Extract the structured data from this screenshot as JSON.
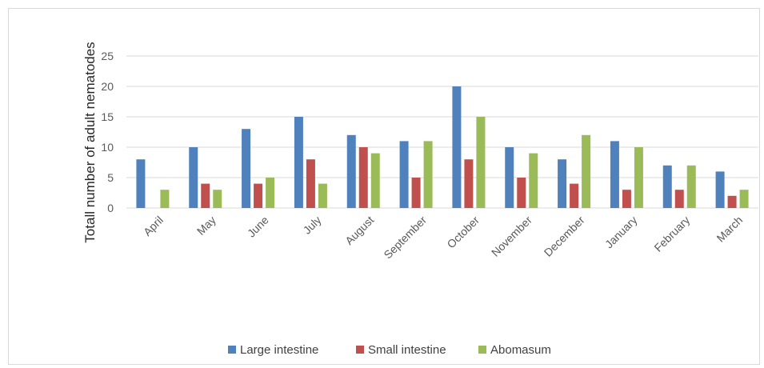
{
  "chart_data": {
    "type": "bar",
    "title": "",
    "xlabel": "",
    "ylabel": "Totall number of adult nematodes",
    "ylim": [
      0,
      25
    ],
    "yticks": [
      0,
      5,
      10,
      15,
      20,
      25
    ],
    "grid": true,
    "legend_position": "bottom",
    "categories": [
      "April",
      "May",
      "June",
      "July",
      "August",
      "September",
      "October",
      "November",
      "December",
      "January",
      "February",
      "March"
    ],
    "series": [
      {
        "name": "Large intestine",
        "color": "#4F81BD",
        "values": [
          8,
          10,
          13,
          15,
          12,
          11,
          20,
          10,
          8,
          11,
          7,
          6
        ]
      },
      {
        "name": "Small intestine",
        "color": "#C0504D",
        "values": [
          0,
          4,
          4,
          8,
          10,
          5,
          8,
          5,
          4,
          3,
          3,
          2
        ]
      },
      {
        "name": "Abomasum",
        "color": "#9BBB59",
        "values": [
          3,
          3,
          5,
          4,
          9,
          11,
          15,
          9,
          12,
          10,
          7,
          3
        ]
      }
    ]
  }
}
